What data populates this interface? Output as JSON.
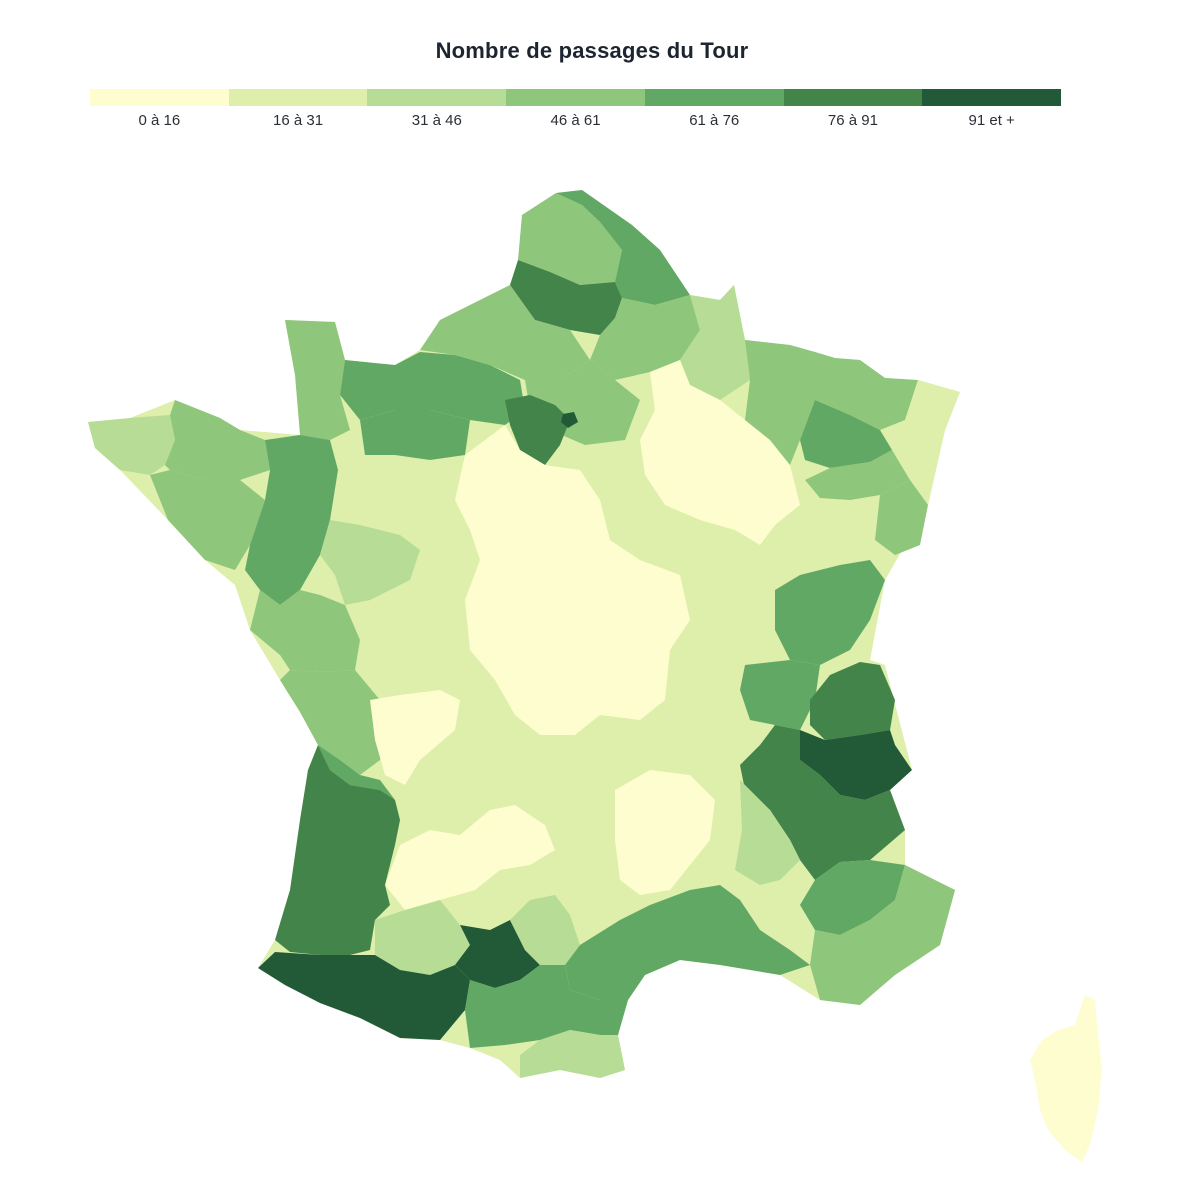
{
  "title": "Nombre de passages du Tour",
  "legend": {
    "classes": [
      {
        "label": "0 à 16",
        "color": "#fefdcf"
      },
      {
        "label": "16 à 31",
        "color": "#ddefaa"
      },
      {
        "label": "31 à 46",
        "color": "#b7dc96"
      },
      {
        "label": "46 à 61",
        "color": "#8ec67c"
      },
      {
        "label": "61 à 76",
        "color": "#62a865"
      },
      {
        "label": "76 à 91",
        "color": "#42844a"
      },
      {
        "label": "91 et +",
        "color": "#225a38"
      }
    ]
  },
  "map": {
    "regions": [
      {
        "id": "france-base",
        "class": 1
      },
      {
        "id": "nord",
        "class": 4
      },
      {
        "id": "pas-de-calais",
        "class": 3
      },
      {
        "id": "somme",
        "class": 5
      },
      {
        "id": "aisne",
        "class": 3
      },
      {
        "id": "ardennes",
        "class": 2
      },
      {
        "id": "manche",
        "class": 3
      },
      {
        "id": "calvados",
        "class": 4
      },
      {
        "id": "seine-maritime",
        "class": 3
      },
      {
        "id": "eure",
        "class": 4
      },
      {
        "id": "oise",
        "class": 3
      },
      {
        "id": "yvelines",
        "class": 5
      },
      {
        "id": "paris",
        "class": 6
      },
      {
        "id": "marne",
        "class": 0
      },
      {
        "id": "meuse",
        "class": 3
      },
      {
        "id": "moselle",
        "class": 3
      },
      {
        "id": "meurthe-et-moselle",
        "class": 4
      },
      {
        "id": "alsace",
        "class": 1
      },
      {
        "id": "vosges",
        "class": 3
      },
      {
        "id": "finistere",
        "class": 2
      },
      {
        "id": "cotes-darmor",
        "class": 3
      },
      {
        "id": "morbihan",
        "class": 3
      },
      {
        "id": "ille-et-vilaine",
        "class": 4
      },
      {
        "id": "loire-atlantique",
        "class": 3
      },
      {
        "id": "vendee",
        "class": 3
      },
      {
        "id": "sarthe",
        "class": 2
      },
      {
        "id": "centre",
        "class": 0
      },
      {
        "id": "doubs",
        "class": 3
      },
      {
        "id": "ain",
        "class": 4
      },
      {
        "id": "isere",
        "class": 4
      },
      {
        "id": "savoie",
        "class": 5
      },
      {
        "id": "haute-savoie",
        "class": 6
      },
      {
        "id": "hautes-alpes",
        "class": 5
      },
      {
        "id": "drome",
        "class": 2
      },
      {
        "id": "alpes-maritimes",
        "class": 4
      },
      {
        "id": "var",
        "class": 3
      },
      {
        "id": "charente-maritime",
        "class": 4
      },
      {
        "id": "haute-vienne",
        "class": 0
      },
      {
        "id": "dordogne",
        "class": 0
      },
      {
        "id": "cantal",
        "class": 0
      },
      {
        "id": "gironde",
        "class": 5
      },
      {
        "id": "landes",
        "class": 2
      },
      {
        "id": "pyrenees-atlantiques",
        "class": 6
      },
      {
        "id": "haute-garonne",
        "class": 6
      },
      {
        "id": "tarn",
        "class": 2
      },
      {
        "id": "herault",
        "class": 4
      },
      {
        "id": "aude",
        "class": 4
      },
      {
        "id": "pyrenees-orientales",
        "class": 2
      },
      {
        "id": "corse",
        "class": 0
      }
    ]
  }
}
